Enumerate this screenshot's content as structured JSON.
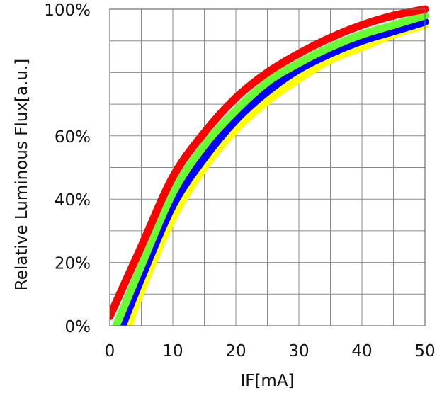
{
  "chart_data": {
    "type": "line",
    "title": "",
    "xlabel": "IF[mA]",
    "ylabel": "Relative Luminous Flux[a.u.]",
    "xlim": [
      0,
      50
    ],
    "ylim": [
      0,
      100
    ],
    "grid": true,
    "legend": "none",
    "x_ticks": [
      0,
      10,
      20,
      30,
      40,
      50
    ],
    "x_tick_labels": [
      "0",
      "10",
      "20",
      "30",
      "40",
      "50"
    ],
    "y_ticks": [
      0,
      20,
      40,
      60,
      100
    ],
    "y_tick_labels": [
      "0%",
      "20%",
      "40%",
      "60%",
      "100%"
    ],
    "series": [
      {
        "color": "#ffff00",
        "x": [
          3,
          5,
          10,
          15,
          20,
          25,
          30,
          35,
          40,
          45,
          50
        ],
        "y": [
          0,
          11,
          34,
          50,
          62,
          71,
          78,
          84,
          88,
          92,
          95
        ]
      },
      {
        "color": "#0000ff",
        "x": [
          2,
          5,
          10,
          15,
          20,
          25,
          30,
          35,
          40,
          45,
          50
        ],
        "y": [
          0,
          15,
          38,
          53,
          65,
          74,
          81,
          86,
          90,
          93,
          96
        ]
      },
      {
        "color": "#66ff33",
        "x": [
          1,
          5,
          10,
          15,
          20,
          25,
          30,
          35,
          40,
          45,
          50
        ],
        "y": [
          0,
          19,
          42,
          57,
          68,
          77,
          83,
          88,
          92,
          95,
          98
        ]
      },
      {
        "color": "#ff0000",
        "x": [
          0,
          5,
          10,
          15,
          20,
          25,
          30,
          35,
          40,
          45,
          50
        ],
        "y": [
          3,
          25,
          47,
          61,
          72,
          80,
          86,
          91,
          95,
          98,
          100
        ]
      }
    ]
  }
}
